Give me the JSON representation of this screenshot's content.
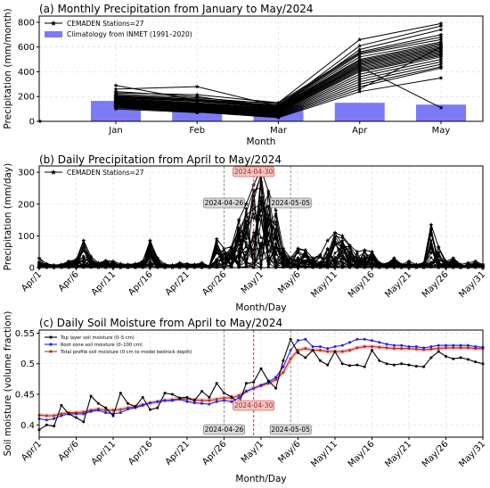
{
  "chart_data": [
    {
      "id": "a",
      "type": "bar+line",
      "title": "(a) Monthly Precipitation from January to May/2024",
      "xlabel": "Month",
      "ylabel": "Precipitation (mm/month)",
      "categories": [
        "Jan",
        "Feb",
        "Mar",
        "Apr",
        "May"
      ],
      "ylim": [
        0,
        850
      ],
      "yticks": [
        0,
        200,
        400,
        600,
        800
      ],
      "grid": true,
      "legend_position": "top-left",
      "bar_series": {
        "name": "Climatology from INMET (1991–2020)",
        "color": "#7b7bf7",
        "values": [
          165,
          120,
          130,
          150,
          135
        ]
      },
      "line_series_legend": "CEMADEN Stations=27",
      "line_series_color": "#000000",
      "stations": [
        [
          290,
          170,
          150,
          660,
          790
        ],
        [
          260,
          280,
          120,
          610,
          770
        ],
        [
          240,
          200,
          110,
          580,
          740
        ],
        [
          230,
          215,
          150,
          560,
          700
        ],
        [
          220,
          190,
          140,
          550,
          680
        ],
        [
          210,
          180,
          130,
          540,
          660
        ],
        [
          205,
          175,
          125,
          520,
          640
        ],
        [
          200,
          170,
          120,
          500,
          630
        ],
        [
          195,
          165,
          115,
          490,
          620
        ],
        [
          190,
          160,
          110,
          480,
          610
        ],
        [
          185,
          150,
          105,
          470,
          600
        ],
        [
          180,
          145,
          100,
          460,
          590
        ],
        [
          175,
          140,
          95,
          450,
          580
        ],
        [
          170,
          135,
          90,
          440,
          570
        ],
        [
          165,
          130,
          85,
          430,
          560
        ],
        [
          160,
          125,
          80,
          420,
          550
        ],
        [
          155,
          120,
          75,
          410,
          540
        ],
        [
          150,
          115,
          70,
          400,
          530
        ],
        [
          145,
          110,
          65,
          380,
          520
        ],
        [
          140,
          105,
          60,
          360,
          500
        ],
        [
          135,
          100,
          55,
          340,
          480
        ],
        [
          130,
          95,
          50,
          320,
          460
        ],
        [
          125,
          90,
          45,
          300,
          440
        ],
        [
          120,
          85,
          40,
          280,
          430
        ],
        [
          115,
          80,
          35,
          260,
          600
        ],
        [
          110,
          75,
          30,
          240,
          350
        ],
        [
          100,
          70,
          100,
          440,
          110
        ]
      ]
    },
    {
      "id": "b",
      "type": "line",
      "title": "(b) Daily Precipitation from April to May/2024",
      "xlabel": "Month/Day",
      "ylabel": "Precipitation (mm/day)",
      "xticks": [
        "Apr/1",
        "Apr/6",
        "Apr/11",
        "Apr/16",
        "Apr/21",
        "Apr/26",
        "May/1",
        "May/6",
        "May/11",
        "May/16",
        "May/21",
        "May/26",
        "May/31"
      ],
      "ylim": [
        0,
        320
      ],
      "yticks": [
        0,
        100,
        200,
        300
      ],
      "grid": true,
      "legend_position": "top-left",
      "legend": "CEMADEN Stations=27",
      "annotations": [
        {
          "label": "2024-04-26",
          "day": 26,
          "style": "dashed-gray"
        },
        {
          "label": "2024-04-30",
          "day": 30,
          "style": "dashed-red"
        },
        {
          "label": "2024-05-05",
          "day": 35,
          "style": "dashed-gray"
        }
      ],
      "peak_envelope": [
        [
          1,
          30
        ],
        [
          2,
          12
        ],
        [
          3,
          8
        ],
        [
          4,
          10
        ],
        [
          5,
          20
        ],
        [
          6,
          25
        ],
        [
          7,
          85
        ],
        [
          8,
          35
        ],
        [
          9,
          15
        ],
        [
          10,
          22
        ],
        [
          11,
          20
        ],
        [
          12,
          12
        ],
        [
          13,
          10
        ],
        [
          14,
          12
        ],
        [
          15,
          20
        ],
        [
          16,
          85
        ],
        [
          17,
          30
        ],
        [
          18,
          10
        ],
        [
          19,
          8
        ],
        [
          20,
          15
        ],
        [
          21,
          12
        ],
        [
          22,
          10
        ],
        [
          23,
          15
        ],
        [
          24,
          5
        ],
        [
          25,
          90
        ],
        [
          26,
          60
        ],
        [
          27,
          65
        ],
        [
          28,
          150
        ],
        [
          29,
          200
        ],
        [
          30,
          260
        ],
        [
          31,
          310
        ],
        [
          32,
          240
        ],
        [
          33,
          180
        ],
        [
          34,
          60
        ],
        [
          35,
          30
        ],
        [
          36,
          60
        ],
        [
          37,
          55
        ],
        [
          38,
          30
        ],
        [
          39,
          40
        ],
        [
          40,
          85
        ],
        [
          41,
          110
        ],
        [
          42,
          100
        ],
        [
          43,
          70
        ],
        [
          44,
          50
        ],
        [
          45,
          55
        ],
        [
          46,
          50
        ],
        [
          47,
          15
        ],
        [
          48,
          12
        ],
        [
          49,
          30
        ],
        [
          50,
          10
        ],
        [
          51,
          20
        ],
        [
          52,
          10
        ],
        [
          53,
          15
        ],
        [
          54,
          135
        ],
        [
          55,
          65
        ],
        [
          56,
          20
        ],
        [
          57,
          30
        ],
        [
          58,
          10
        ],
        [
          59,
          15
        ],
        [
          60,
          20
        ],
        [
          61,
          10
        ]
      ]
    },
    {
      "id": "c",
      "type": "line",
      "title": "(c) Daily Soil Moisture from April to May/2024",
      "xlabel": "Month/Day",
      "ylabel": "Soil moisture (volume fraction)",
      "xticks": [
        "Apr/1",
        "Apr/6",
        "Apr/11",
        "Apr/16",
        "Apr/21",
        "Apr/26",
        "May/1",
        "May/6",
        "May/11",
        "May/16",
        "May/21",
        "May/26",
        "May/31"
      ],
      "ylim": [
        0.38,
        0.555
      ],
      "yticks": [
        0.4,
        0.45,
        0.5,
        0.55
      ],
      "grid": true,
      "legend_position": "top-left",
      "annotations": [
        {
          "label": "2024-04-26",
          "day": 26,
          "style": "dashed-gray"
        },
        {
          "label": "2024-04-30",
          "day": 30,
          "style": "dashed-red"
        },
        {
          "label": "2024-05-05",
          "day": 35,
          "style": "dashed-gray"
        }
      ],
      "series": [
        {
          "name": "Top layer soil moisture (0–5 cm)",
          "color": "#000000",
          "values": [
            0.392,
            0.4,
            0.398,
            0.432,
            0.418,
            0.412,
            0.405,
            0.447,
            0.435,
            0.428,
            0.415,
            0.452,
            0.435,
            0.43,
            0.445,
            0.425,
            0.428,
            0.452,
            0.45,
            0.444,
            0.445,
            0.44,
            0.455,
            0.445,
            0.468,
            0.452,
            0.446,
            0.434,
            0.468,
            0.47,
            0.492,
            0.472,
            0.46,
            0.505,
            0.54,
            0.518,
            0.51,
            0.522,
            0.505,
            0.498,
            0.52,
            0.5,
            0.497,
            0.498,
            0.495,
            0.522,
            0.505,
            0.5,
            0.498,
            0.5,
            0.498,
            0.496,
            0.495,
            0.51,
            0.52,
            0.512,
            0.508,
            0.51,
            0.507,
            0.503,
            0.5
          ]
        },
        {
          "name": "Root zone soil moisture (0–100 cm)",
          "color": "#2020ee",
          "values": [
            0.41,
            0.408,
            0.41,
            0.415,
            0.418,
            0.418,
            0.418,
            0.422,
            0.424,
            0.42,
            0.418,
            0.42,
            0.426,
            0.428,
            0.432,
            0.436,
            0.438,
            0.44,
            0.44,
            0.442,
            0.438,
            0.436,
            0.435,
            0.434,
            0.438,
            0.44,
            0.438,
            0.444,
            0.455,
            0.46,
            0.465,
            0.47,
            0.478,
            0.495,
            0.522,
            0.538,
            0.54,
            0.528,
            0.528,
            0.525,
            0.528,
            0.53,
            0.535,
            0.54,
            0.54,
            0.538,
            0.535,
            0.532,
            0.53,
            0.53,
            0.528,
            0.528,
            0.526,
            0.528,
            0.53,
            0.53,
            0.53,
            0.53,
            0.53,
            0.528,
            0.527
          ]
        },
        {
          "name": "Total profile soil moisture (0 cm to model bedrock depth)",
          "color": "#b03020",
          "values": [
            0.416,
            0.415,
            0.415,
            0.418,
            0.42,
            0.42,
            0.421,
            0.424,
            0.426,
            0.424,
            0.424,
            0.425,
            0.428,
            0.43,
            0.433,
            0.436,
            0.438,
            0.44,
            0.441,
            0.443,
            0.442,
            0.441,
            0.44,
            0.44,
            0.442,
            0.444,
            0.444,
            0.448,
            0.455,
            0.46,
            0.464,
            0.468,
            0.474,
            0.486,
            0.508,
            0.522,
            0.525,
            0.522,
            0.522,
            0.52,
            0.52,
            0.52,
            0.522,
            0.526,
            0.528,
            0.528,
            0.527,
            0.526,
            0.525,
            0.525,
            0.525,
            0.524,
            0.523,
            0.524,
            0.525,
            0.526,
            0.526,
            0.526,
            0.526,
            0.525,
            0.525
          ]
        }
      ]
    }
  ]
}
